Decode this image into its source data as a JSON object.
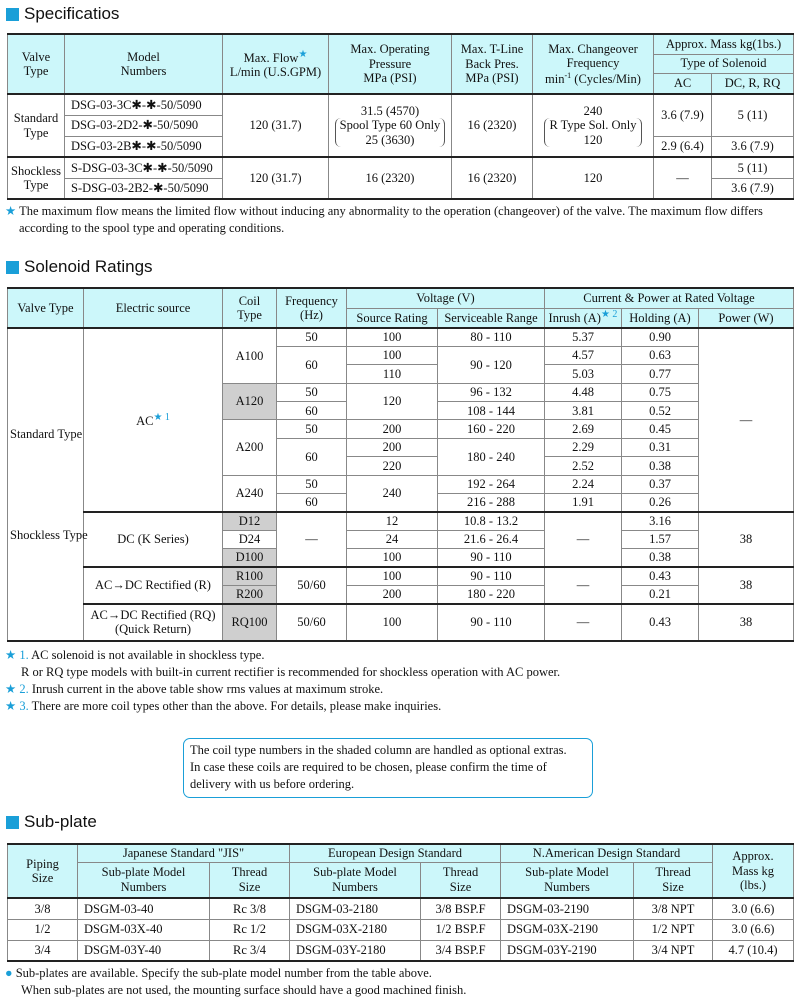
{
  "accent": "#1a9fd8",
  "header_bg": "#ccf7fa",
  "shade": "#cfcfcf",
  "spec": {
    "title": "Specificatios",
    "head": {
      "valve": "Valve Type",
      "model": "Model Numbers",
      "flow": "Max. Flow",
      "flow_unit": "L/min (U.S.GPM)",
      "press1": "Max. Operating",
      "press2": "Pressure",
      "press3": "MPa (PSI)",
      "tline1": "Max. T-Line",
      "tline2": "Back Pres.",
      "tline3": "MPa (PSI)",
      "freq1": "Max. Changeover",
      "freq2": "Frequency",
      "freq3": "min",
      "freq_sup": "-1",
      "freq4": " (Cycles/Min)",
      "mass": "Approx. Mass kg(1bs.)",
      "sol": "Type of Solenoid",
      "ac": "AC",
      "dc": "DC, R, RQ"
    },
    "standard": {
      "type": "Standard Type",
      "models": [
        "DSG-03-3C✱-✱-50/5090",
        "DSG-03-2D2-✱-50/5090",
        "DSG-03-2B✱-✱-50/5090"
      ],
      "flow": "120 (31.7)",
      "press1": "31.5 (4570)",
      "press2": "Spool Type 60 Only",
      "press3": "25 (3630)",
      "tline": "16 (2320)",
      "freq1": "240",
      "freq2": "R Type Sol. Only",
      "freq3": "120",
      "ac1": "3.6 (7.9)",
      "dc1": "5 (11)",
      "ac2": "2.9 (6.4)",
      "dc2": "3.6 (7.9)"
    },
    "shockless": {
      "type": "Shockless Type",
      "models": [
        "S-DSG-03-3C✱-✱-50/5090",
        "S-DSG-03-2B2-✱-50/5090"
      ],
      "flow": "120 (31.7)",
      "press": "16 (2320)",
      "tline": "16 (2320)",
      "freq": "120",
      "ac": "—",
      "dc1": "5 (11)",
      "dc2": "3.6 (7.9)"
    },
    "note": "The maximum flow means the limited flow without inducing any abnormality to the operation (changeover) of the valve.  The maximum flow differs according to the spool type and operating conditions."
  },
  "sol": {
    "title": "Solenoid Ratings",
    "head": {
      "valve": "Valve Type",
      "source": "Electric source",
      "coil": "Coil Type",
      "freq": "Frequency (Hz)",
      "voltage": "Voltage (V)",
      "current": "Current & Power at Rated Voltage",
      "src": "Source Rating",
      "range": "Serviceable Range",
      "inrush": "Inrush (A)",
      "inrush_star": "★ 2",
      "hold": "Holding (A)",
      "power": "Power (W)"
    },
    "valve1": "Standard Type",
    "valve2": "Shockless Type",
    "ac": "AC",
    "ac_star": "★ 1",
    "dc": "DC (K Series)",
    "r": "AC→DC Rectified (R)",
    "rq1": "AC→DC Rectified (RQ)",
    "rq2": "(Quick Return)",
    "rows": [
      {
        "coil": "A100",
        "freq": "50",
        "src": "100",
        "range": "80 - 110",
        "inrush": "5.37",
        "hold": "0.90",
        "power": "—"
      },
      {
        "freq": "60",
        "src": "100",
        "range": "90 - 120",
        "inrush": "4.57",
        "hold": "0.63"
      },
      {
        "src": "110",
        "inrush": "5.03",
        "hold": "0.77"
      },
      {
        "coil": "A120",
        "freq": "50",
        "src": "120",
        "range": "96 - 132",
        "inrush": "4.48",
        "hold": "0.75"
      },
      {
        "freq": "60",
        "range": "108 - 144",
        "inrush": "3.81",
        "hold": "0.52"
      },
      {
        "coil": "A200",
        "freq": "50",
        "src": "200",
        "range": "160 - 220",
        "inrush": "2.69",
        "hold": "0.45"
      },
      {
        "freq": "60",
        "src": "200",
        "range": "180 - 240",
        "inrush": "2.29",
        "hold": "0.31"
      },
      {
        "src": "220",
        "inrush": "2.52",
        "hold": "0.38"
      },
      {
        "coil": "A240",
        "freq": "50",
        "src": "240",
        "range": "192 - 264",
        "inrush": "2.24",
        "hold": "0.37"
      },
      {
        "freq": "60",
        "range": "216 - 288",
        "inrush": "1.91",
        "hold": "0.26"
      },
      {
        "coil": "D12",
        "freq": "—",
        "src": "12",
        "range": "10.8 - 13.2",
        "inrush": "—",
        "hold": "3.16",
        "power": "38"
      },
      {
        "coil": "D24",
        "src": "24",
        "range": "21.6 - 26.4",
        "hold": "1.57"
      },
      {
        "coil": "D100",
        "src": "100",
        "range": "90 - 110",
        "hold": "0.38"
      },
      {
        "coil": "R100",
        "freq": "50/60",
        "src": "100",
        "range": "90 - 110",
        "inrush": "—",
        "hold": "0.43",
        "power": "38"
      },
      {
        "coil": "R200",
        "src": "200",
        "range": "180 - 220",
        "hold": "0.21"
      },
      {
        "coil": "RQ100",
        "freq": "50/60",
        "src": "100",
        "range": "90 - 110",
        "inrush": "—",
        "hold": "0.43",
        "power": "38"
      }
    ],
    "notes": [
      {
        "mark": "★ 1.",
        "text": "AC solenoid is not available in shockless type.",
        "text2": "R or RQ type models with built-in current rectifier is recommended for shockless operation with AC power."
      },
      {
        "mark": "★ 2.",
        "text": "Inrush current in the above table show rms values at maximum stroke."
      },
      {
        "mark": "★ 3.",
        "text": "There are more coil types other than the above.  For details, please make inquiries."
      }
    ],
    "box": [
      "The coil type numbers in the shaded column are handled as optional extras.",
      "In case these coils are required to be chosen, please confirm the time of",
      "delivery with us before ordering."
    ]
  },
  "sub": {
    "title": "Sub-plate",
    "head": {
      "piping": "Piping Size",
      "jis": "Japanese Standard \"JIS\"",
      "eu": "European Design Standard",
      "na": "N.American Design Standard",
      "mass": "Approx. Mass kg (lbs.)",
      "model": "Sub-plate Model Numbers",
      "thread": "Thread Size"
    },
    "rows": [
      {
        "size": "3/8",
        "jis": "DSGM-03-40",
        "jist": "Rc 3/8",
        "eu": "DSGM-03-2180",
        "eut": "3/8 BSP.F",
        "na": "DSGM-03-2190",
        "nat": "3/8 NPT",
        "mass": "3.0 (6.6)"
      },
      {
        "size": "1/2",
        "jis": "DSGM-03X-40",
        "jist": "Rc 1/2",
        "eu": "DSGM-03X-2180",
        "eut": "1/2 BSP.F",
        "na": "DSGM-03X-2190",
        "nat": "1/2 NPT",
        "mass": "3.0 (6.6)"
      },
      {
        "size": "3/4",
        "jis": "DSGM-03Y-40",
        "jist": "Rc 3/4",
        "eu": "DSGM-03Y-2180",
        "eut": "3/4 BSP.F",
        "na": "DSGM-03Y-2190",
        "nat": "3/4 NPT",
        "mass": "4.7 (10.4)"
      }
    ],
    "note1": "Sub-plates are available.  Specify the sub-plate model number from the table above.",
    "note2": "When sub-plates are not used, the mounting surface should have a good machined finish."
  }
}
